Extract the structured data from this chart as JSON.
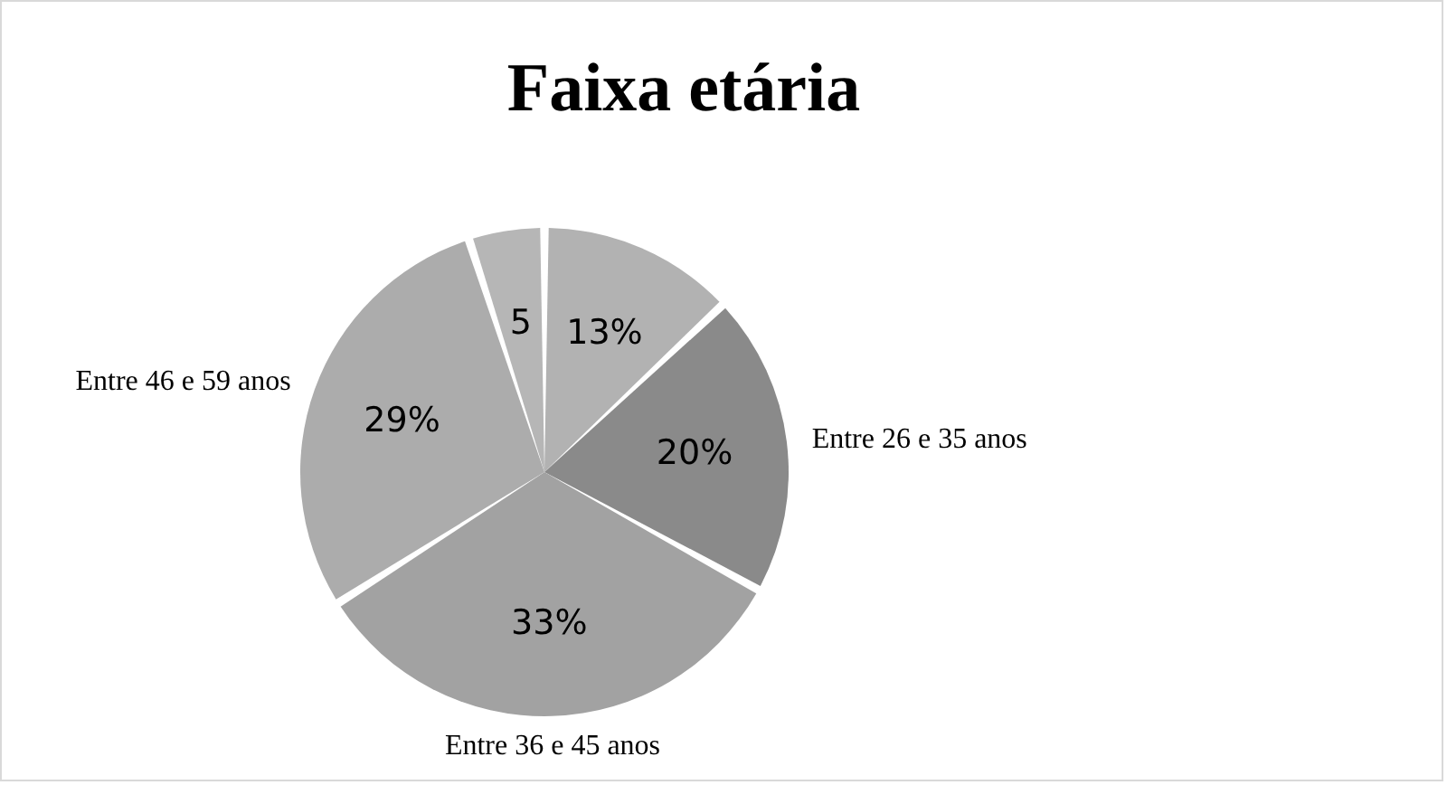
{
  "chart_data": {
    "type": "pie",
    "title": "Faixa etária",
    "categories": [
      null,
      "Entre 26 e 35 anos",
      "Entre 36 e 45 anos",
      "Entre 46 e 59 anos",
      null
    ],
    "values": [
      13,
      20,
      33,
      29,
      5
    ],
    "colors": [
      "#b2b2b2",
      "#8a8a8a",
      "#a2a2a2",
      "#acacac",
      "#b6b6b6"
    ],
    "value_labels": [
      "13%",
      "20%",
      "33%",
      "29%",
      "5"
    ]
  }
}
